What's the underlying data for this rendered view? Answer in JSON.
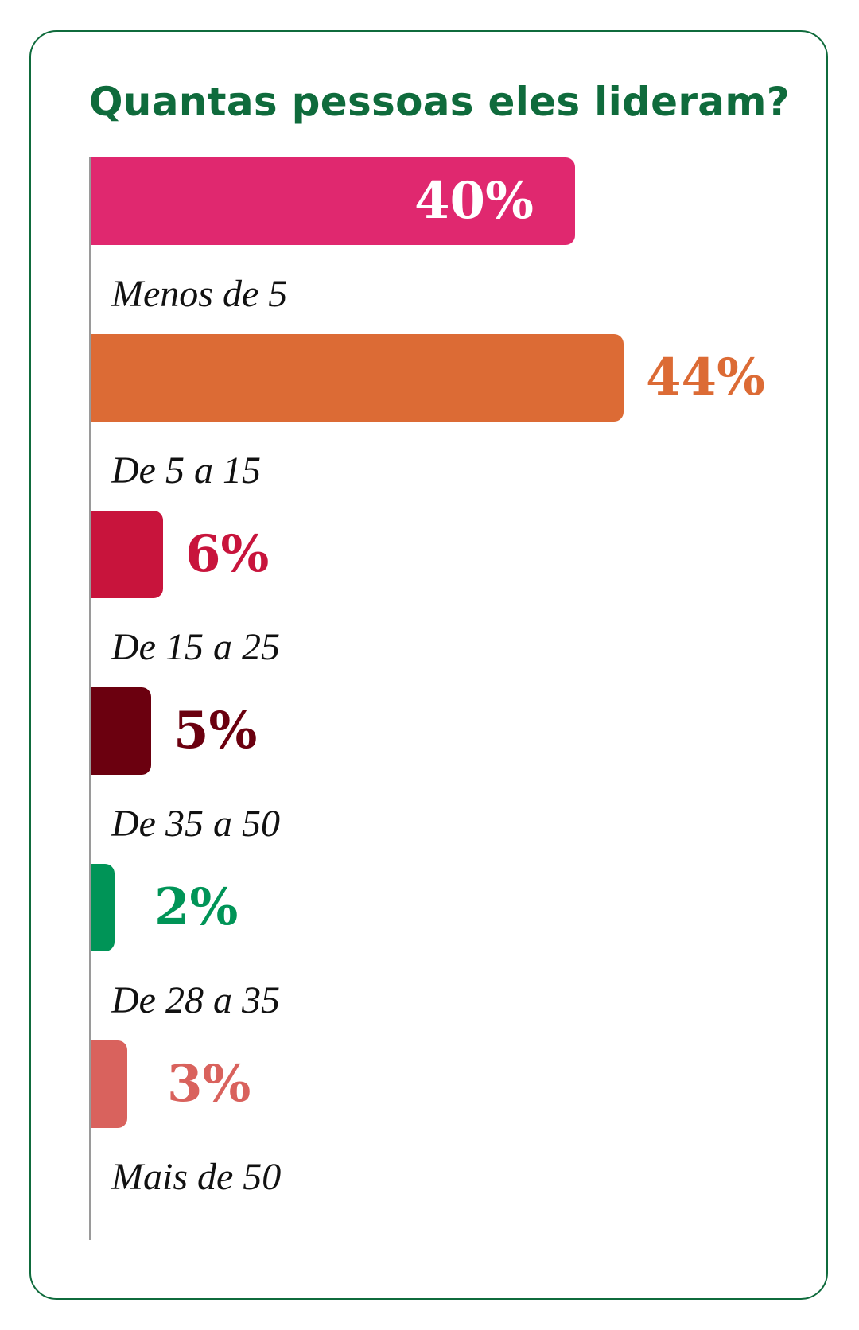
{
  "header": {
    "title": "Quantas pessoas eles lideram?"
  },
  "chart_data": {
    "type": "bar",
    "orientation": "horizontal",
    "title": "Quantas pessoas eles lideram?",
    "categories": [
      "Menos de 5",
      "De 5 a 15",
      "De 15 a 25",
      "De 35 a 50",
      "De 28 a 35",
      "Mais de 50"
    ],
    "values": [
      40,
      44,
      6,
      5,
      2,
      3
    ],
    "value_labels": [
      "40%",
      "44%",
      "6%",
      "5%",
      "2%",
      "3%"
    ],
    "colors": [
      "#e0286f",
      "#dc6b35",
      "#c8143c",
      "#6b000f",
      "#009457",
      "#d9625d"
    ],
    "xlim": [
      0,
      44
    ],
    "unit": "%",
    "grid": false,
    "legend": "none",
    "first_label_inside_bar": true,
    "inside_label_color": "#ffffff"
  }
}
